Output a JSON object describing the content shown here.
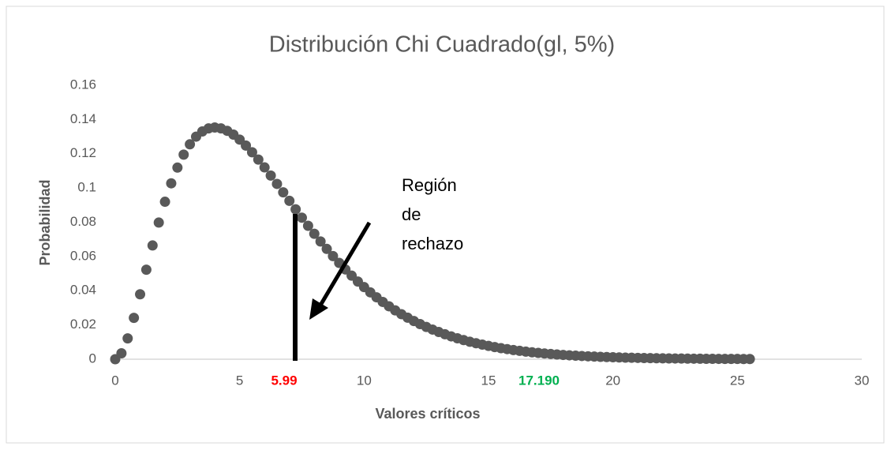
{
  "chart_data": {
    "type": "scatter",
    "title": "Distribución Chi Cuadrado(gl, 5%)",
    "x_label": "Valores críticos",
    "y_label": "Probabilidad",
    "color": "#595959",
    "xlim": [
      0,
      30
    ],
    "xticks": [
      0,
      5,
      10,
      15,
      20,
      25,
      30
    ],
    "ylim": [
      0,
      0.16
    ],
    "yticks": [
      {
        "value": 0,
        "label": "0"
      },
      {
        "value": 0.02,
        "label": "0.02"
      },
      {
        "value": 0.04,
        "label": "0.04"
      },
      {
        "value": 0.06,
        "label": "0.06"
      },
      {
        "value": 0.08,
        "label": "0.08"
      },
      {
        "value": 0.1,
        "label": "0.1"
      },
      {
        "value": 0.12,
        "label": "0.12"
      },
      {
        "value": 0.14,
        "label": "0.14"
      },
      {
        "value": 0.16,
        "label": "0.16"
      }
    ],
    "annotations": {
      "critical_low": "5.99",
      "critical_high": "17.190",
      "region": [
        "Región",
        "de",
        "rechazo"
      ]
    },
    "x": [
      0,
      0.25,
      0.5,
      0.75,
      1,
      1.25,
      1.5,
      1.75,
      2,
      2.25,
      2.5,
      2.75,
      3,
      3.25,
      3.5,
      3.75,
      4,
      4.25,
      4.5,
      4.75,
      5,
      5.25,
      5.5,
      5.75,
      6,
      6.25,
      6.5,
      6.75,
      7,
      7.25,
      7.5,
      7.75,
      8,
      8.25,
      8.5,
      8.75,
      9,
      9.25,
      9.5,
      9.75,
      10,
      10.25,
      10.5,
      10.75,
      11,
      11.25,
      11.5,
      11.75,
      12,
      12.25,
      12.5,
      12.75,
      13,
      13.25,
      13.5,
      13.75,
      14,
      14.25,
      14.5,
      14.75,
      15,
      15.25,
      15.5,
      15.75,
      16,
      16.25,
      16.5,
      16.75,
      17,
      17.25,
      17.5,
      17.75,
      18,
      18.25,
      18.5,
      18.75,
      19,
      19.25,
      19.5,
      19.75,
      20,
      20.25,
      20.5,
      20.75,
      21,
      21.25,
      21.5,
      21.75,
      22,
      22.25,
      22.5,
      22.75,
      23,
      23.25,
      23.5,
      23.75,
      24,
      24.25,
      24.5,
      24.75,
      25,
      25.25,
      25.5
    ],
    "values": [
      0,
      0.00345,
      0.01217,
      0.02416,
      0.03791,
      0.05228,
      0.06643,
      0.0798,
      0.09197,
      0.10273,
      0.11191,
      0.11949,
      0.12551,
      0.12999,
      0.13304,
      0.13479,
      0.13534,
      0.13479,
      0.13339,
      0.13117,
      0.12826,
      0.12479,
      0.12087,
      0.11659,
      0.11202,
      0.10727,
      0.10239,
      0.09745,
      0.09248,
      0.08755,
      0.08268,
      0.07791,
      0.07326,
      0.06875,
      0.06441,
      0.06023,
      0.05625,
      0.05242,
      0.0488,
      0.04536,
      0.04211,
      0.03904,
      0.03616,
      0.03345,
      0.03091,
      0.02853,
      0.02631,
      0.02424,
      0.02231,
      0.02052,
      0.01885,
      0.01731,
      0.01588,
      0.01456,
      0.01334,
      0.01221,
      0.01117,
      0.01021,
      0.00933,
      0.00852,
      0.00778,
      0.0071,
      0.00647,
      0.0059,
      0.00537,
      0.00489,
      0.00445,
      0.00405,
      0.00368,
      0.00334,
      0.00303,
      0.00275,
      0.0025,
      0.00227,
      0.00206,
      0.00187,
      0.00169,
      0.00154,
      0.00139,
      0.00126,
      0.00114,
      0.00103,
      0.00093,
      0.00085,
      0.00077,
      0.00069,
      0.00063,
      0.00057,
      0.00051,
      0.00046,
      0.00042,
      0.00038,
      0.00034,
      0.00031,
      0.00028,
      0.00024,
      0.00022,
      0.0002,
      0.00018,
      0.00016,
      0.00015,
      0.00013,
      0.00012
    ]
  }
}
